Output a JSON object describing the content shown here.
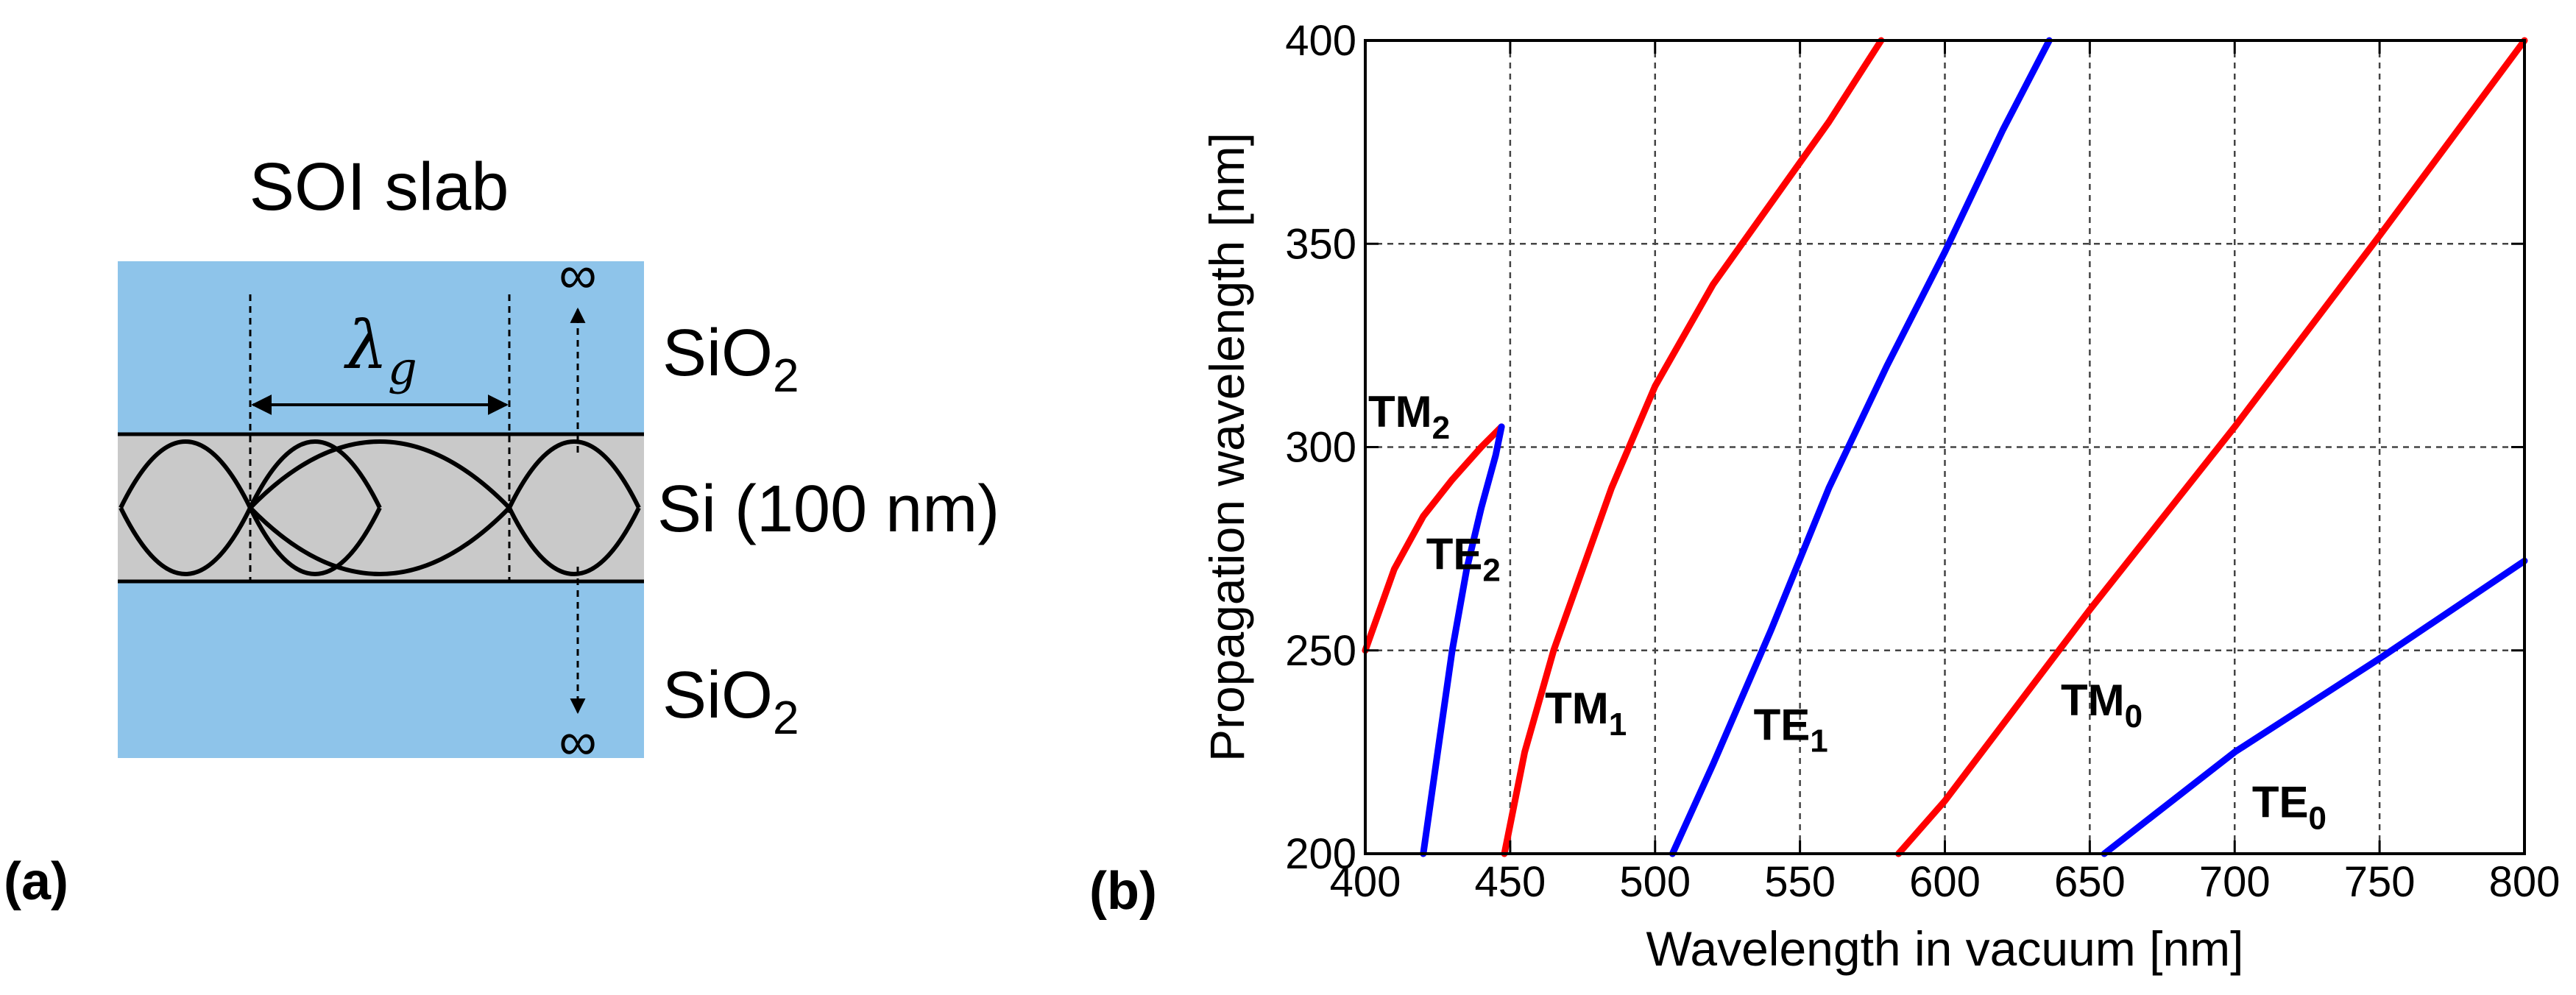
{
  "panel_a": {
    "label": "(a)",
    "title": "SOI slab",
    "cladding_top": {
      "base": "SiO",
      "sub": "2"
    },
    "core": "Si (100 nm)",
    "cladding_bottom": {
      "base": "SiO",
      "sub": "2"
    },
    "wavelength_symbol": {
      "base": "λ",
      "sub": "g"
    },
    "infinity_top": "∞",
    "infinity_bottom": "∞",
    "colors": {
      "cladding": "#8ec4ea",
      "core": "#c9c9c9",
      "line": "#000000"
    }
  },
  "panel_b": {
    "label": "(b)"
  },
  "chart_data": {
    "type": "line",
    "title": "",
    "xlabel": "Wavelength in vacuum [nm]",
    "ylabel": "Propagation wavelength [nm]",
    "xlim": [
      400,
      800
    ],
    "ylim": [
      200,
      400
    ],
    "xticks": [
      400,
      450,
      500,
      550,
      600,
      650,
      700,
      750,
      800
    ],
    "yticks": [
      200,
      250,
      300,
      350,
      400
    ],
    "grid": true,
    "series": [
      {
        "name": "TM2",
        "label_base": "TM",
        "label_sub": "2",
        "color": "#ff0000",
        "x": [
          400,
          410,
          420,
          430,
          440,
          447
        ],
        "y": [
          250,
          270,
          283,
          292,
          300,
          305
        ]
      },
      {
        "name": "TE2",
        "label_base": "TE",
        "label_sub": "2",
        "color": "#0000ff",
        "x": [
          420,
          425,
          430,
          435,
          440,
          445,
          447
        ],
        "y": [
          200,
          225,
          250,
          270,
          285,
          298,
          305
        ]
      },
      {
        "name": "TM1",
        "label_base": "TM",
        "label_sub": "1",
        "color": "#ff0000",
        "x": [
          448,
          455,
          465,
          475,
          485,
          500,
          520,
          540,
          560,
          578
        ],
        "y": [
          200,
          225,
          250,
          270,
          290,
          315,
          340,
          360,
          380,
          400
        ]
      },
      {
        "name": "TE1",
        "label_base": "TE",
        "label_sub": "1",
        "color": "#0000ff",
        "x": [
          506,
          520,
          540,
          560,
          580,
          600,
          620,
          636
        ],
        "y": [
          200,
          222,
          255,
          290,
          320,
          348,
          378,
          400
        ]
      },
      {
        "name": "TM0",
        "label_base": "TM",
        "label_sub": "0",
        "color": "#ff0000",
        "x": [
          584,
          600,
          650,
          700,
          750,
          800
        ],
        "y": [
          200,
          213,
          260,
          305,
          352,
          400
        ]
      },
      {
        "name": "TE0",
        "label_base": "TE",
        "label_sub": "0",
        "color": "#0000ff",
        "x": [
          655,
          700,
          750,
          800
        ],
        "y": [
          200,
          225,
          248,
          272
        ]
      }
    ]
  }
}
